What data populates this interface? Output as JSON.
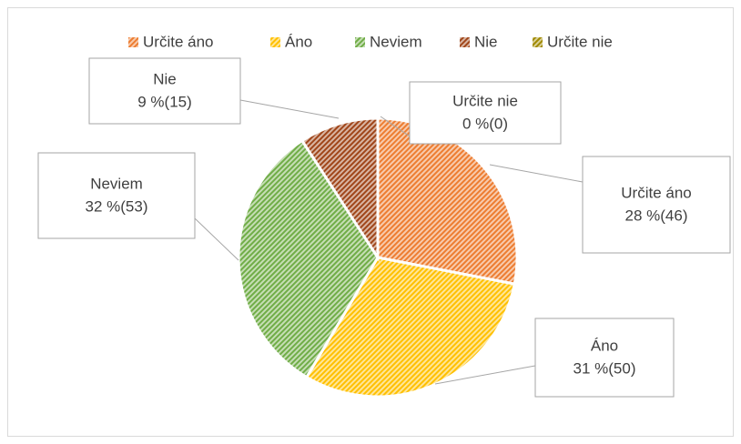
{
  "chart_data": {
    "type": "pie",
    "categories": [
      "Určite áno",
      "Áno",
      "Neviem",
      "Nie",
      "Určite nie"
    ],
    "values": [
      46,
      50,
      53,
      15,
      0
    ],
    "value_labels": [
      "28 %(46)",
      "31 %(50)",
      "32 %(53)",
      "9 %(15)",
      "0 %(0)"
    ],
    "colors": [
      "#ed7d31",
      "#ffc000",
      "#70ad47",
      "#a0461a",
      "#a08a00"
    ],
    "legend": "top"
  }
}
